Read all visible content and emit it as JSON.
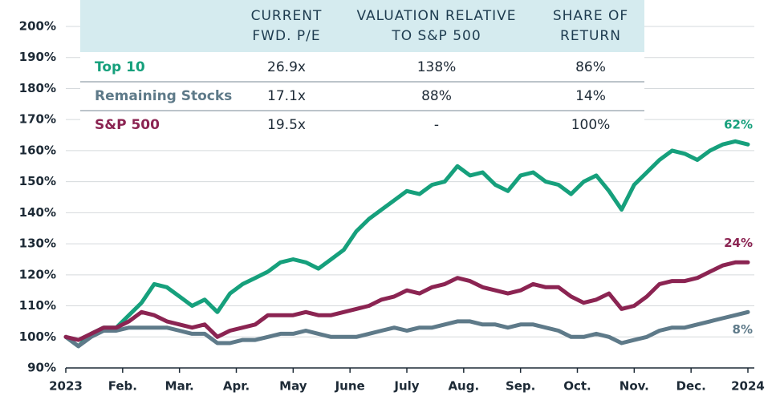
{
  "chart_data": {
    "type": "line",
    "x_tick_labels": [
      "2023",
      "Feb.",
      "Mar.",
      "Apr.",
      "May",
      "June",
      "July",
      "Aug.",
      "Sep.",
      "Oct.",
      "Nov.",
      "Dec.",
      "2024"
    ],
    "ylim": [
      90,
      200
    ],
    "yticks": [
      {
        "value": 90,
        "label": "90%"
      },
      {
        "value": 100,
        "label": "100%"
      },
      {
        "value": 110,
        "label": "110%"
      },
      {
        "value": 120,
        "label": "120%"
      },
      {
        "value": 130,
        "label": "130%"
      },
      {
        "value": 140,
        "label": "140%"
      },
      {
        "value": 150,
        "label": "150%"
      },
      {
        "value": 160,
        "label": "160%"
      },
      {
        "value": 170,
        "label": "170%"
      },
      {
        "value": 180,
        "label": "180%"
      },
      {
        "value": 190,
        "label": "190%"
      },
      {
        "value": 200,
        "label": "200%"
      }
    ],
    "grid": true,
    "series": [
      {
        "name": "Top 10",
        "color": "#16a07c",
        "end_label": "62%",
        "values": [
          100,
          97,
          101,
          103,
          103,
          107,
          111,
          117,
          116,
          113,
          110,
          112,
          108,
          114,
          117,
          119,
          121,
          124,
          125,
          124,
          122,
          125,
          128,
          134,
          138,
          141,
          144,
          147,
          146,
          149,
          150,
          155,
          152,
          153,
          149,
          147,
          152,
          153,
          150,
          149,
          146,
          150,
          152,
          147,
          141,
          149,
          153,
          157,
          160,
          159,
          157,
          160,
          162,
          163,
          162
        ]
      },
      {
        "name": "Remaining Stocks",
        "color": "#5e7a89",
        "end_label": "8%",
        "values": [
          100,
          97,
          100,
          102,
          102,
          103,
          103,
          103,
          103,
          102,
          101,
          101,
          98,
          98,
          99,
          99,
          100,
          101,
          101,
          102,
          101,
          100,
          100,
          100,
          101,
          102,
          103,
          102,
          103,
          103,
          104,
          105,
          105,
          104,
          104,
          103,
          104,
          104,
          103,
          102,
          100,
          100,
          101,
          100,
          98,
          99,
          100,
          102,
          103,
          103,
          104,
          105,
          106,
          107,
          108
        ]
      },
      {
        "name": "S&P 500",
        "color": "#8b2452",
        "end_label": "24%",
        "values": [
          100,
          99,
          101,
          103,
          103,
          105,
          108,
          107,
          105,
          104,
          103,
          104,
          100,
          102,
          103,
          104,
          107,
          107,
          107,
          108,
          107,
          107,
          108,
          109,
          110,
          112,
          113,
          115,
          114,
          116,
          117,
          119,
          118,
          116,
          115,
          114,
          115,
          117,
          116,
          116,
          113,
          111,
          112,
          114,
          109,
          110,
          113,
          117,
          118,
          118,
          119,
          121,
          123,
          124,
          124
        ]
      }
    ]
  },
  "table": {
    "columns": [
      [
        "CURRENT",
        "FWD. P/E"
      ],
      [
        "VALUATION RELATIVE",
        "TO S&P 500"
      ],
      [
        "SHARE OF",
        "RETURN"
      ]
    ],
    "rows": [
      [
        "Top 10",
        "26.9x",
        "138%",
        "86%"
      ],
      [
        "Remaining Stocks",
        "17.1x",
        "88%",
        "14%"
      ],
      [
        "S&P 500",
        "19.5x",
        "-",
        "100%"
      ]
    ]
  }
}
